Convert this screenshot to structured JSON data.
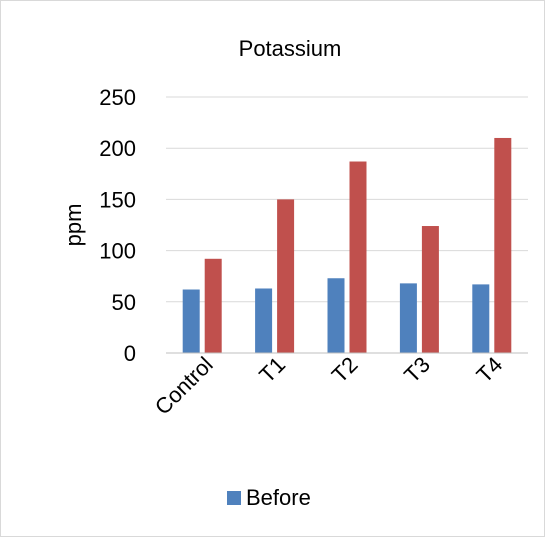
{
  "chart_data": {
    "type": "bar",
    "title": "Potassium",
    "ylabel": "ppm",
    "xlabel": "",
    "categories": [
      "Control",
      "T1",
      "T2",
      "T3",
      "T4"
    ],
    "series": [
      {
        "name": "Before",
        "values": [
          62,
          63,
          73,
          68,
          67
        ]
      },
      {
        "values": [
          92,
          150,
          187,
          124,
          210
        ]
      }
    ],
    "ylim": [
      0,
      250
    ],
    "yticks": [
      "0",
      "50",
      "100",
      "150",
      "200",
      "250"
    ],
    "grid": true,
    "legend": "bottom",
    "colors": [
      "#4f81bd",
      "#c0504d"
    ]
  }
}
